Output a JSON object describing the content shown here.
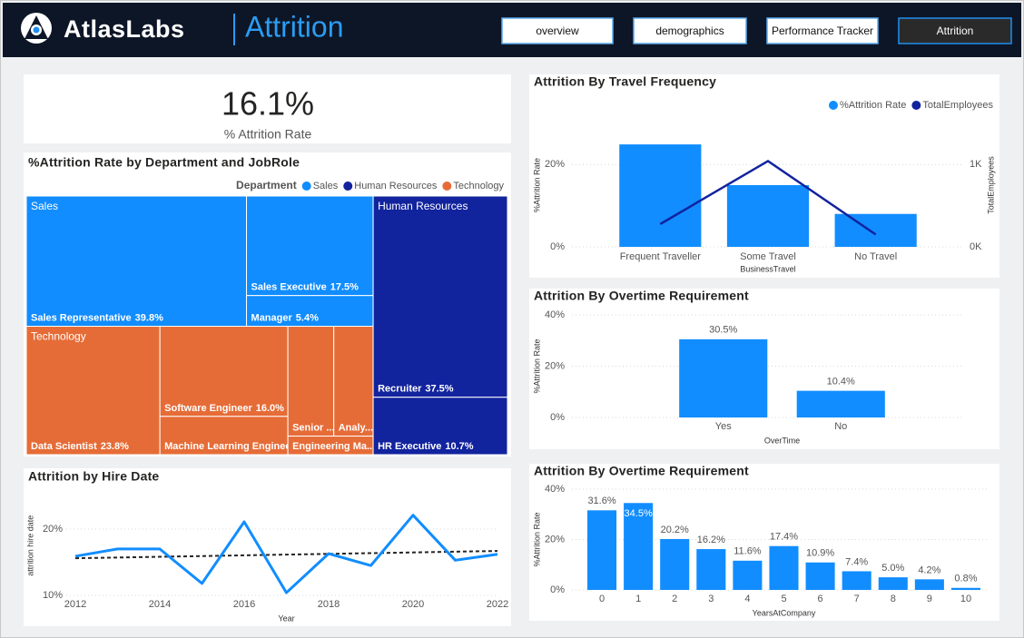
{
  "header": {
    "logo": "AtlasLabs",
    "title": "Attrition"
  },
  "nav": [
    "overview",
    "demographics",
    "Performance Tracker",
    "Attrition"
  ],
  "kpi": {
    "value": "16.1%",
    "label": "% Attrition Rate"
  },
  "chart_data": [
    {
      "type": "treemap",
      "title": "%Attrition Rate by Department and JobRole",
      "legend_title": "Department",
      "groups": [
        {
          "name": "Sales",
          "color": "#118DFF",
          "items": [
            {
              "name": "Sales Representative",
              "value": 39.8,
              "value_label": "39.8%"
            },
            {
              "name": "Sales Executive",
              "value": 17.5,
              "value_label": "17.5%"
            },
            {
              "name": "Manager",
              "value": 5.4,
              "value_label": "5.4%"
            }
          ]
        },
        {
          "name": "Human Resources",
          "color": "#12239E",
          "items": [
            {
              "name": "Recruiter",
              "value": 37.5,
              "value_label": "37.5%"
            },
            {
              "name": "HR Executive",
              "value": 10.7,
              "value_label": "10.7%"
            }
          ]
        },
        {
          "name": "Technology",
          "color": "#E66C37",
          "items": [
            {
              "name": "Data Scientist",
              "value": 23.8,
              "value_label": "23.8%"
            },
            {
              "name": "Software Engineer",
              "value": 16.0,
              "value_label": "16.0%"
            },
            {
              "name": "Machine Learning Enginee...",
              "value": 6.8
            },
            {
              "name": "Senior ...",
              "value": 7.0
            },
            {
              "name": "Analy...",
              "value": 6.0
            },
            {
              "name": "Engineering Ma...",
              "value": 2.2
            }
          ]
        }
      ]
    },
    {
      "type": "bar",
      "title": "Attrition By Travel Frequency",
      "categories": [
        "Frequent Traveller",
        "Some Travel",
        "No Travel"
      ],
      "series": [
        {
          "name": "%Attrition Rate",
          "color": "#118DFF",
          "values": [
            24.9,
            15.0,
            8.0
          ]
        },
        {
          "name": "TotalEmployees",
          "color": "#12239E",
          "values": [
            277,
            1043,
            150
          ],
          "axis": "y2",
          "type": "line"
        }
      ],
      "x_label": "BusinessTravel",
      "y_label": "%Attrition Rate",
      "y2_label": "TotalEmployees",
      "ylim": [
        0,
        30
      ],
      "yticks": [
        {
          "value": 0,
          "label": "0%"
        },
        {
          "value": 20,
          "label": "20%"
        }
      ],
      "y2lim": [
        0,
        1500
      ],
      "y2ticks": [
        {
          "value": 0,
          "label": "0K"
        },
        {
          "value": 1000,
          "label": "1K"
        }
      ],
      "legend": "top-right",
      "grid": true
    },
    {
      "type": "bar",
      "title": "Attrition By Overtime Requirement",
      "categories": [
        "Yes",
        "No"
      ],
      "values": [
        30.5,
        10.4
      ],
      "value_labels": [
        "30.5%",
        "10.4%"
      ],
      "color": "#118DFF",
      "x_label": "OverTime",
      "y_label": "%Attrition Rate",
      "ylim": [
        0,
        40
      ],
      "yticks": [
        {
          "value": 0,
          "label": "0%"
        },
        {
          "value": 20,
          "label": "20%"
        },
        {
          "value": 40,
          "label": "40%"
        }
      ],
      "grid": true
    },
    {
      "type": "bar",
      "title": "Attrition By Overtime Requirement",
      "categories": [
        "0",
        "1",
        "2",
        "3",
        "4",
        "5",
        "6",
        "7",
        "8",
        "9",
        "10"
      ],
      "values": [
        31.6,
        34.5,
        20.2,
        16.2,
        11.6,
        17.4,
        10.9,
        7.4,
        5.0,
        4.2,
        0.8
      ],
      "value_labels": [
        "31.6%",
        "34.5%",
        "20.2%",
        "16.2%",
        "11.6%",
        "17.4%",
        "10.9%",
        "7.4%",
        "5.0%",
        "4.2%",
        "0.8%"
      ],
      "color": "#118DFF",
      "x_label": "YearsAtCompany",
      "y_label": "%Attrition Rate",
      "ylim": [
        0,
        40
      ],
      "yticks": [
        {
          "value": 0,
          "label": "0%"
        },
        {
          "value": 20,
          "label": "20%"
        },
        {
          "value": 40,
          "label": "40%"
        }
      ],
      "grid": true
    },
    {
      "type": "line",
      "title": "Attrition by Hire Date",
      "x": [
        2012,
        2013,
        2014,
        2015,
        2016,
        2017,
        2018,
        2019,
        2020,
        2021,
        2022
      ],
      "values": [
        15.9,
        17.0,
        17.0,
        11.8,
        21.1,
        10.4,
        16.3,
        14.5,
        22.1,
        15.3,
        16.2
      ],
      "color": "#118DFF",
      "trend": {
        "x": [
          2012,
          2022
        ],
        "values": [
          15.6,
          16.7
        ],
        "color": "#252423"
      },
      "x_label": "Year",
      "y_label": "attrition hire date",
      "xlim": [
        2012,
        2022
      ],
      "xticks": [
        2012,
        2014,
        2016,
        2018,
        2020,
        2022
      ],
      "ylim": [
        10,
        25
      ],
      "yticks": [
        {
          "value": 10,
          "label": "10%"
        },
        {
          "value": 20,
          "label": "20%"
        }
      ],
      "grid": true
    }
  ]
}
